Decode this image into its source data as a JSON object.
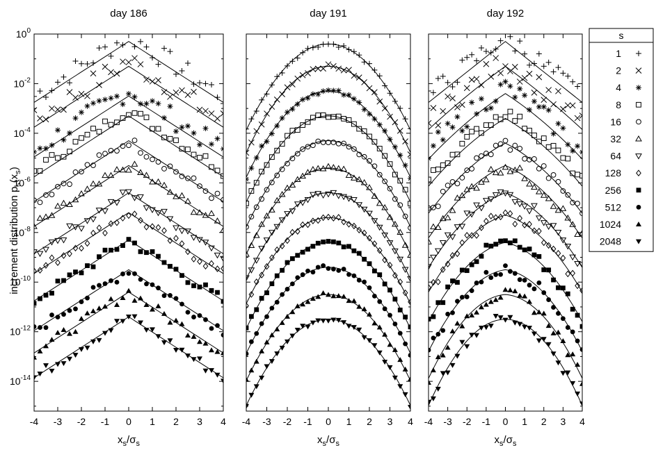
{
  "chart_data": {
    "type": "scatter",
    "ylabel_main": "increment distribution p",
    "ylabel_sub1": "s",
    "ylabel_mid": "(x",
    "ylabel_sub2": "s",
    "ylabel_end": ")",
    "xlabel_main": "x",
    "xlabel_sub1": "s",
    "xlabel_mid": "/σ",
    "xlabel_sub2": "s",
    "y_scale": "log",
    "y_exponent_ticks": [
      "0",
      "-2",
      "-4",
      "-6",
      "-8",
      "-10",
      "-12",
      "-14"
    ],
    "y_tick_base": "10",
    "x_ticks": [
      "-4",
      "-3",
      "-2",
      "-1",
      "0",
      "1",
      "2",
      "3",
      "4"
    ],
    "x_range": [
      -4,
      4
    ],
    "log10_y_range": [
      -15.2,
      0
    ],
    "panels": [
      {
        "title": "day 186",
        "shape": "laplace",
        "offset_log": [
          -0.3,
          -1.3,
          -2.5,
          -3.3,
          -4.3,
          -5.3,
          -6.4,
          -7.2,
          -8.3,
          -9.5,
          -10.4,
          -11.4
        ]
      },
      {
        "title": "day 191",
        "shape": "gauss",
        "offset_log": [
          -0.4,
          -1.3,
          -2.3,
          -3.3,
          -4.3,
          -5.4,
          -6.4,
          -7.4,
          -8.4,
          -9.4,
          -10.5,
          -11.5
        ]
      },
      {
        "title": "day 192",
        "shape": "mixed",
        "offset_log": [
          -0.3,
          -1.3,
          -2.4,
          -3.4,
          -4.4,
          -5.3,
          -6.4,
          -7.3,
          -8.4,
          -9.5,
          -10.5,
          -11.5
        ]
      }
    ],
    "legend": {
      "title": "s",
      "placement": "right",
      "entries": [
        {
          "s": "1",
          "marker": "+"
        },
        {
          "s": "2",
          "marker": "×"
        },
        {
          "s": "4",
          "marker": "asterisk"
        },
        {
          "s": "8",
          "marker": "open-square"
        },
        {
          "s": "16",
          "marker": "open-circle"
        },
        {
          "s": "32",
          "marker": "open-triangle-up"
        },
        {
          "s": "64",
          "marker": "open-triangle-down"
        },
        {
          "s": "128",
          "marker": "open-diamond"
        },
        {
          "s": "256",
          "marker": "filled-square"
        },
        {
          "s": "512",
          "marker": "filled-circle"
        },
        {
          "s": "1024",
          "marker": "filled-triangle-up"
        },
        {
          "s": "2048",
          "marker": "filled-triangle-down"
        }
      ]
    },
    "colors": {
      "ink": "#000000",
      "background": "#ffffff"
    }
  }
}
